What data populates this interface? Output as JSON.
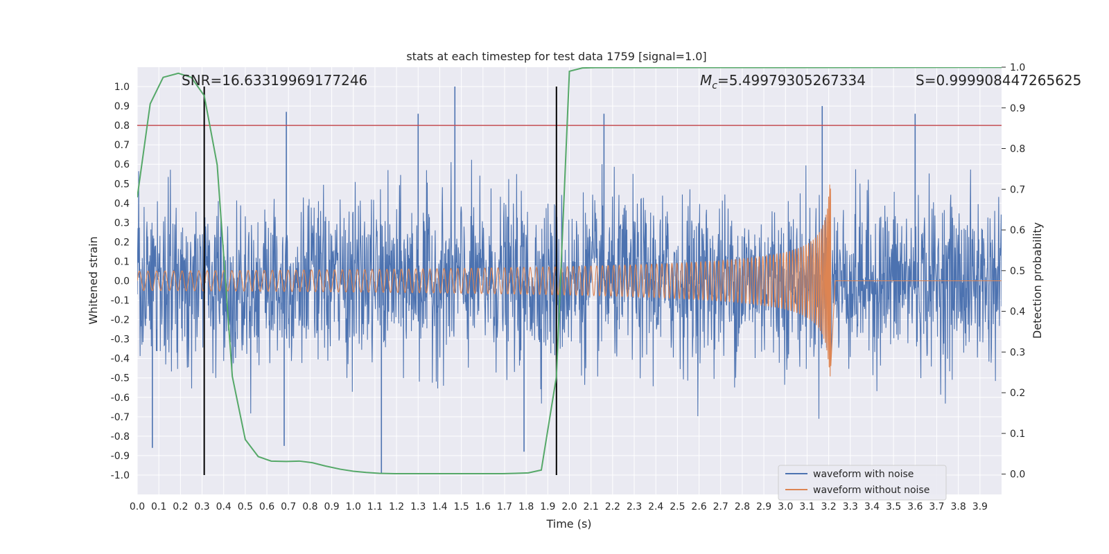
{
  "chart_data": {
    "type": "line",
    "title": "stats at each timestep for test data 1759 [signal=1.0]",
    "xlabel": "Time (s)",
    "ylabel": "Whitened strain",
    "y2label": "Detection probability",
    "xlim": [
      0.0,
      4.0
    ],
    "ylim": [
      -1.1,
      1.1
    ],
    "y2lim": [
      -0.05,
      1.0
    ],
    "x_ticks": [
      "0.0",
      "0.1",
      "0.2",
      "0.3",
      "0.4",
      "0.5",
      "0.6",
      "0.7",
      "0.8",
      "0.9",
      "1.0",
      "1.1",
      "1.2",
      "1.3",
      "1.4",
      "1.5",
      "1.6",
      "1.7",
      "1.8",
      "1.9",
      "2.0",
      "2.1",
      "2.2",
      "2.3",
      "2.4",
      "2.5",
      "2.6",
      "2.7",
      "2.8",
      "2.9",
      "3.0",
      "3.1",
      "3.2",
      "3.3",
      "3.4",
      "3.5",
      "3.6",
      "3.7",
      "3.8",
      "3.9"
    ],
    "y_ticks": [
      "1.0",
      "0.9",
      "0.8",
      "0.7",
      "0.6",
      "0.5",
      "0.4",
      "0.3",
      "0.2",
      "0.1",
      "0.0",
      "-0.1",
      "-0.2",
      "-0.3",
      "-0.4",
      "-0.5",
      "-0.6",
      "-0.7",
      "-0.8",
      "-0.9",
      "-1.0"
    ],
    "y2_ticks": [
      "1.0",
      "0.9",
      "0.8",
      "0.7",
      "0.6",
      "0.5",
      "0.4",
      "0.3",
      "0.2",
      "0.1",
      "0.0"
    ],
    "grid": true,
    "legend_position": "lower-right",
    "annotations": {
      "snr": "SNR=16.63319969177246",
      "mc": "=5.49979305267334",
      "mc_symbol": "M",
      "mc_sub": "c",
      "s": "S=0.999908447265625"
    },
    "vertical_lines": [
      0.31,
      1.94
    ],
    "threshold": 0.8,
    "series": [
      {
        "name": "waveform with noise",
        "color": "#4c72b0",
        "kind": "noise",
        "envelope": 0.55,
        "peaks": [
          [
            1.47,
            1.0
          ],
          [
            1.13,
            -0.99
          ],
          [
            0.69,
            0.87
          ],
          [
            0.07,
            -0.86
          ],
          [
            1.3,
            0.86
          ],
          [
            2.16,
            0.86
          ],
          [
            3.17,
            0.9
          ],
          [
            1.79,
            -0.88
          ],
          [
            3.6,
            0.86
          ],
          [
            0.68,
            -0.85
          ]
        ]
      },
      {
        "name": "waveform without noise",
        "color": "#dd8452",
        "kind": "chirp",
        "amp_start": 0.05,
        "amp_end": 0.5,
        "t_merge": 3.21,
        "freq_start": 25,
        "freq_end": 120
      },
      {
        "name": "detection probability",
        "color": "#55a868",
        "axis": "y2",
        "x": [
          0.0,
          0.06,
          0.12,
          0.19,
          0.25,
          0.31,
          0.37,
          0.44,
          0.5,
          0.56,
          0.62,
          0.69,
          0.75,
          0.81,
          0.87,
          0.94,
          1.0,
          1.06,
          1.12,
          1.19,
          1.25,
          1.31,
          1.37,
          1.44,
          1.5,
          1.56,
          1.62,
          1.69,
          1.75,
          1.81,
          1.87,
          1.94,
          2.0,
          2.06,
          2.12,
          2.19,
          2.25,
          3.9,
          4.0
        ],
        "y": [
          0.68,
          0.91,
          0.975,
          0.985,
          0.975,
          0.93,
          0.76,
          0.24,
          0.085,
          0.043,
          0.032,
          0.031,
          0.032,
          0.028,
          0.02,
          0.012,
          0.007,
          0.004,
          0.002,
          0.001,
          0.001,
          0.001,
          0.001,
          0.001,
          0.001,
          0.001,
          0.001,
          0.001,
          0.002,
          0.003,
          0.01,
          0.24,
          0.99,
          0.998,
          0.999,
          0.999,
          0.999,
          0.9995,
          0.9995
        ]
      }
    ]
  }
}
